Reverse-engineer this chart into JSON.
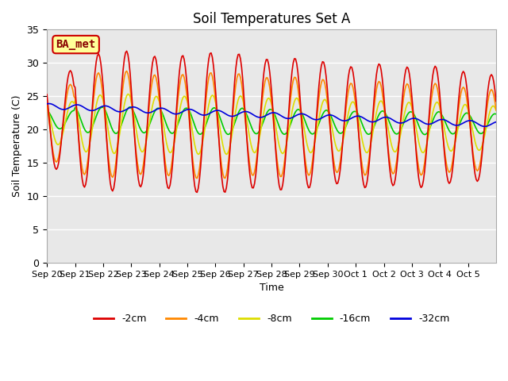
{
  "title": "Soil Temperatures Set A",
  "xlabel": "Time",
  "ylabel": "Soil Temperature (C)",
  "ylim": [
    0,
    35
  ],
  "yticks": [
    0,
    5,
    10,
    15,
    20,
    25,
    30,
    35
  ],
  "line_colors": {
    "-2cm": "#dd0000",
    "-4cm": "#ff8800",
    "-8cm": "#dddd00",
    "-16cm": "#00cc00",
    "-32cm": "#0000dd"
  },
  "legend_label_order": [
    "-2cm",
    "-4cm",
    "-8cm",
    "-16cm",
    "-32cm"
  ],
  "ba_met_label": "BA_met",
  "background_color": "#ffffff",
  "plot_bg_color": "#e8e8e8",
  "grid_color": "#ffffff",
  "date_labels": [
    "Sep 20",
    "Sep 21",
    "Sep 22",
    "Sep 23",
    "Sep 24",
    "Sep 25",
    "Sep 26",
    "Sep 27",
    "Sep 28",
    "Sep 29",
    "Sep 30",
    "Oct 1",
    "Oct 2",
    "Oct 3",
    "Oct 4",
    "Oct 5"
  ]
}
